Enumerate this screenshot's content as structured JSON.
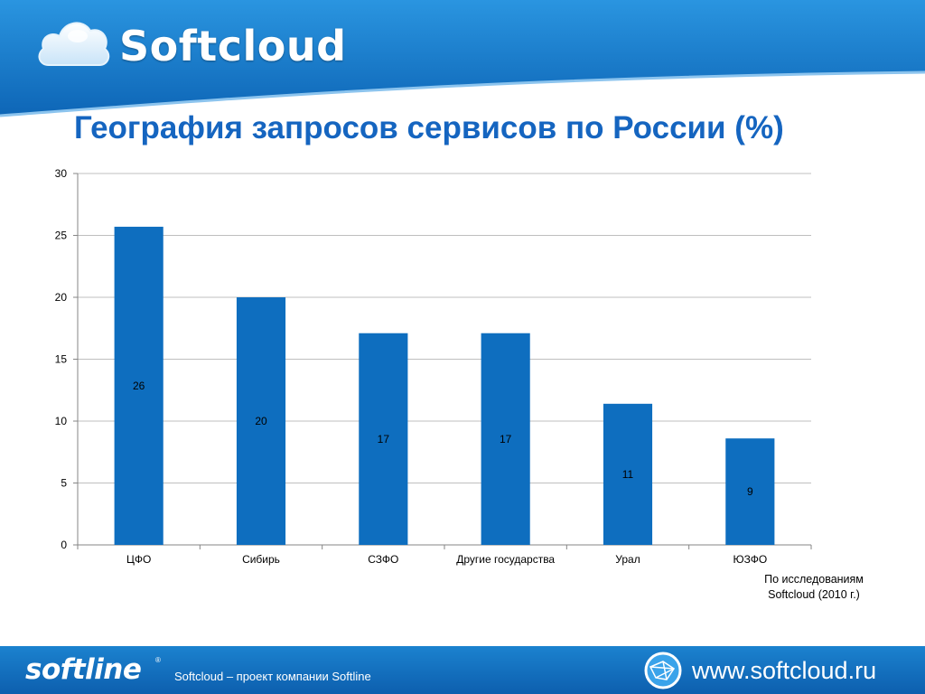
{
  "header": {
    "brand": "Softcloud",
    "title": "География запросов сервисов по России (%)"
  },
  "chart_data": {
    "type": "bar",
    "categories": [
      "ЦФО",
      "Сибирь",
      "СЗФО",
      "Другие государства",
      "Урал",
      "ЮЗФО"
    ],
    "values": [
      25.7,
      20,
      17.1,
      17.1,
      11.4,
      8.6
    ],
    "data_labels": [
      "26",
      "20",
      "17",
      "17",
      "11",
      "9"
    ],
    "yticks": [
      "0",
      "5",
      "10",
      "15",
      "20",
      "25",
      "30"
    ],
    "ylim": [
      0,
      30
    ],
    "grid": true,
    "legend": "none",
    "bar_color": "#0e6ebf"
  },
  "note": {
    "line1": "По исследованиям",
    "line2": "Softcloud (2010  г.)"
  },
  "footer": {
    "logo": "softline",
    "reg_mark": "®",
    "tagline": "Softcloud – проект компании Softline",
    "url": "www.softcloud.ru"
  },
  "colors": {
    "accent": "#1565c0",
    "header_blue": "#1b7fd0",
    "footer_blue": "#0d5fae"
  }
}
